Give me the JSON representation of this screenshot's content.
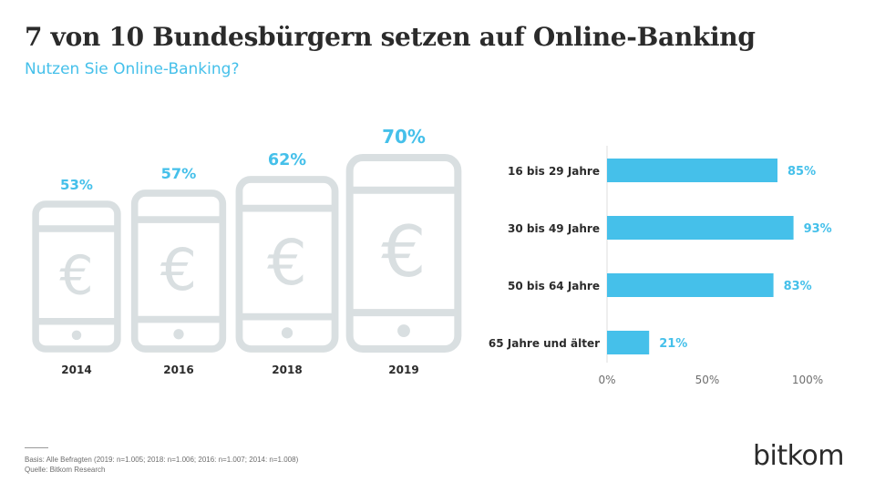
{
  "header": {
    "title": "7 von 10 Bundesbürgern setzen auf Online-Banking",
    "subtitle": "Nutzen Sie Online-Banking?"
  },
  "colors": {
    "accent": "#45c0ea",
    "phone": "#d9dfe1",
    "text": "#2b2b2b",
    "axis": "#dedede"
  },
  "icons": {
    "phone": "smartphone-icon",
    "currency": "euro-icon"
  },
  "chart_data": [
    {
      "type": "bar",
      "categories": [
        "2014",
        "2016",
        "2018",
        "2019"
      ],
      "values": [
        53,
        57,
        62,
        70
      ],
      "value_labels": [
        "53%",
        "57%",
        "62%",
        "70%"
      ],
      "note": "values shown as pictogram smartphones, size grows with value"
    },
    {
      "type": "bar",
      "orientation": "horizontal",
      "categories": [
        "16 bis 29 Jahre",
        "30 bis 49 Jahre",
        "50 bis 64 Jahre",
        "65 Jahre und älter"
      ],
      "values": [
        85,
        93,
        83,
        21
      ],
      "value_labels": [
        "85%",
        "93%",
        "83%",
        "21%"
      ],
      "xlim": [
        0,
        100
      ],
      "xticks": [
        "0%",
        "50%",
        "100%"
      ],
      "grid": false
    }
  ],
  "footnote": {
    "basis": "Basis: Alle Befragten (2019: n=1.005; 2018: n=1.006; 2016: n=1.007; 2014: n=1.008)",
    "source": "Quelle: Bitkom Research"
  },
  "logo": {
    "text": "bitkom"
  }
}
